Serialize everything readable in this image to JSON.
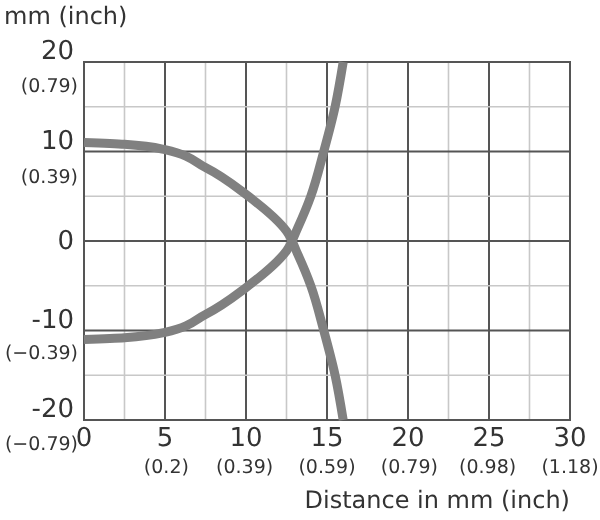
{
  "chart_data": {
    "type": "line",
    "xlabel": "Distance in mm (inch)",
    "ylabel": "mm (inch)",
    "xlim": [
      0,
      30
    ],
    "ylim": [
      -20,
      20
    ],
    "x2lim": [
      0,
      1.18
    ],
    "y2lim": [
      -0.79,
      0.79
    ],
    "xticks": [
      0,
      {
        "value": 2.5,
        "label": null
      },
      5,
      {
        "value": 7.5,
        "label": null
      },
      10,
      {
        "value": 12.5,
        "label": null
      },
      15,
      {
        "value": 17.5,
        "label": null
      },
      20,
      {
        "value": 22.5,
        "label": null
      },
      25,
      {
        "value": 27.5,
        "label": null
      },
      30
    ],
    "x2ticks": [
      {
        "value": 0.2,
        "label": "(0.2)"
      },
      {
        "value": 0.39,
        "label": "(0.39)"
      },
      {
        "value": 0.59,
        "label": "(0.59)"
      },
      {
        "value": 0.79,
        "label": "(0.79)"
      },
      {
        "value": 0.98,
        "label": "(0.98)"
      },
      {
        "value": 1.18,
        "label": "(1.18)"
      }
    ],
    "yticks": [
      -20,
      {
        "value": -15,
        "label": null
      },
      -10,
      {
        "value": -5,
        "label": null
      },
      0,
      {
        "value": 5,
        "label": null
      },
      10,
      {
        "value": 15,
        "label": null
      },
      20
    ],
    "y2ticks": [
      {
        "value": -0.79,
        "label": "(−0.79)"
      },
      {
        "value": -0.39,
        "label": "(−0.39)"
      },
      {
        "value": 0.39,
        "label": "(0.39)"
      },
      {
        "value": 0.79,
        "label": "(0.79)"
      }
    ],
    "grid": true,
    "line_style": "solid",
    "marker": "none",
    "series": [
      {
        "color": "#808080",
        "x": [
          0,
          2.5,
          5,
          7.5,
          10,
          12.5,
          13.2,
          14,
          14.8,
          15.5,
          16
        ],
        "values": [
          11,
          10.8,
          10.2,
          8.2,
          5.2,
          1.1,
          -1.5,
          -5,
          -10,
          -15,
          -20
        ]
      },
      {
        "color": "#808080",
        "x": [
          0,
          2.5,
          5,
          7.5,
          10,
          12.5,
          13.2,
          14,
          14.8,
          15.5,
          16
        ],
        "values": [
          -11,
          -10.8,
          -10.2,
          -8.2,
          -5.2,
          -1.1,
          1.5,
          5,
          10,
          15,
          20
        ]
      }
    ]
  }
}
